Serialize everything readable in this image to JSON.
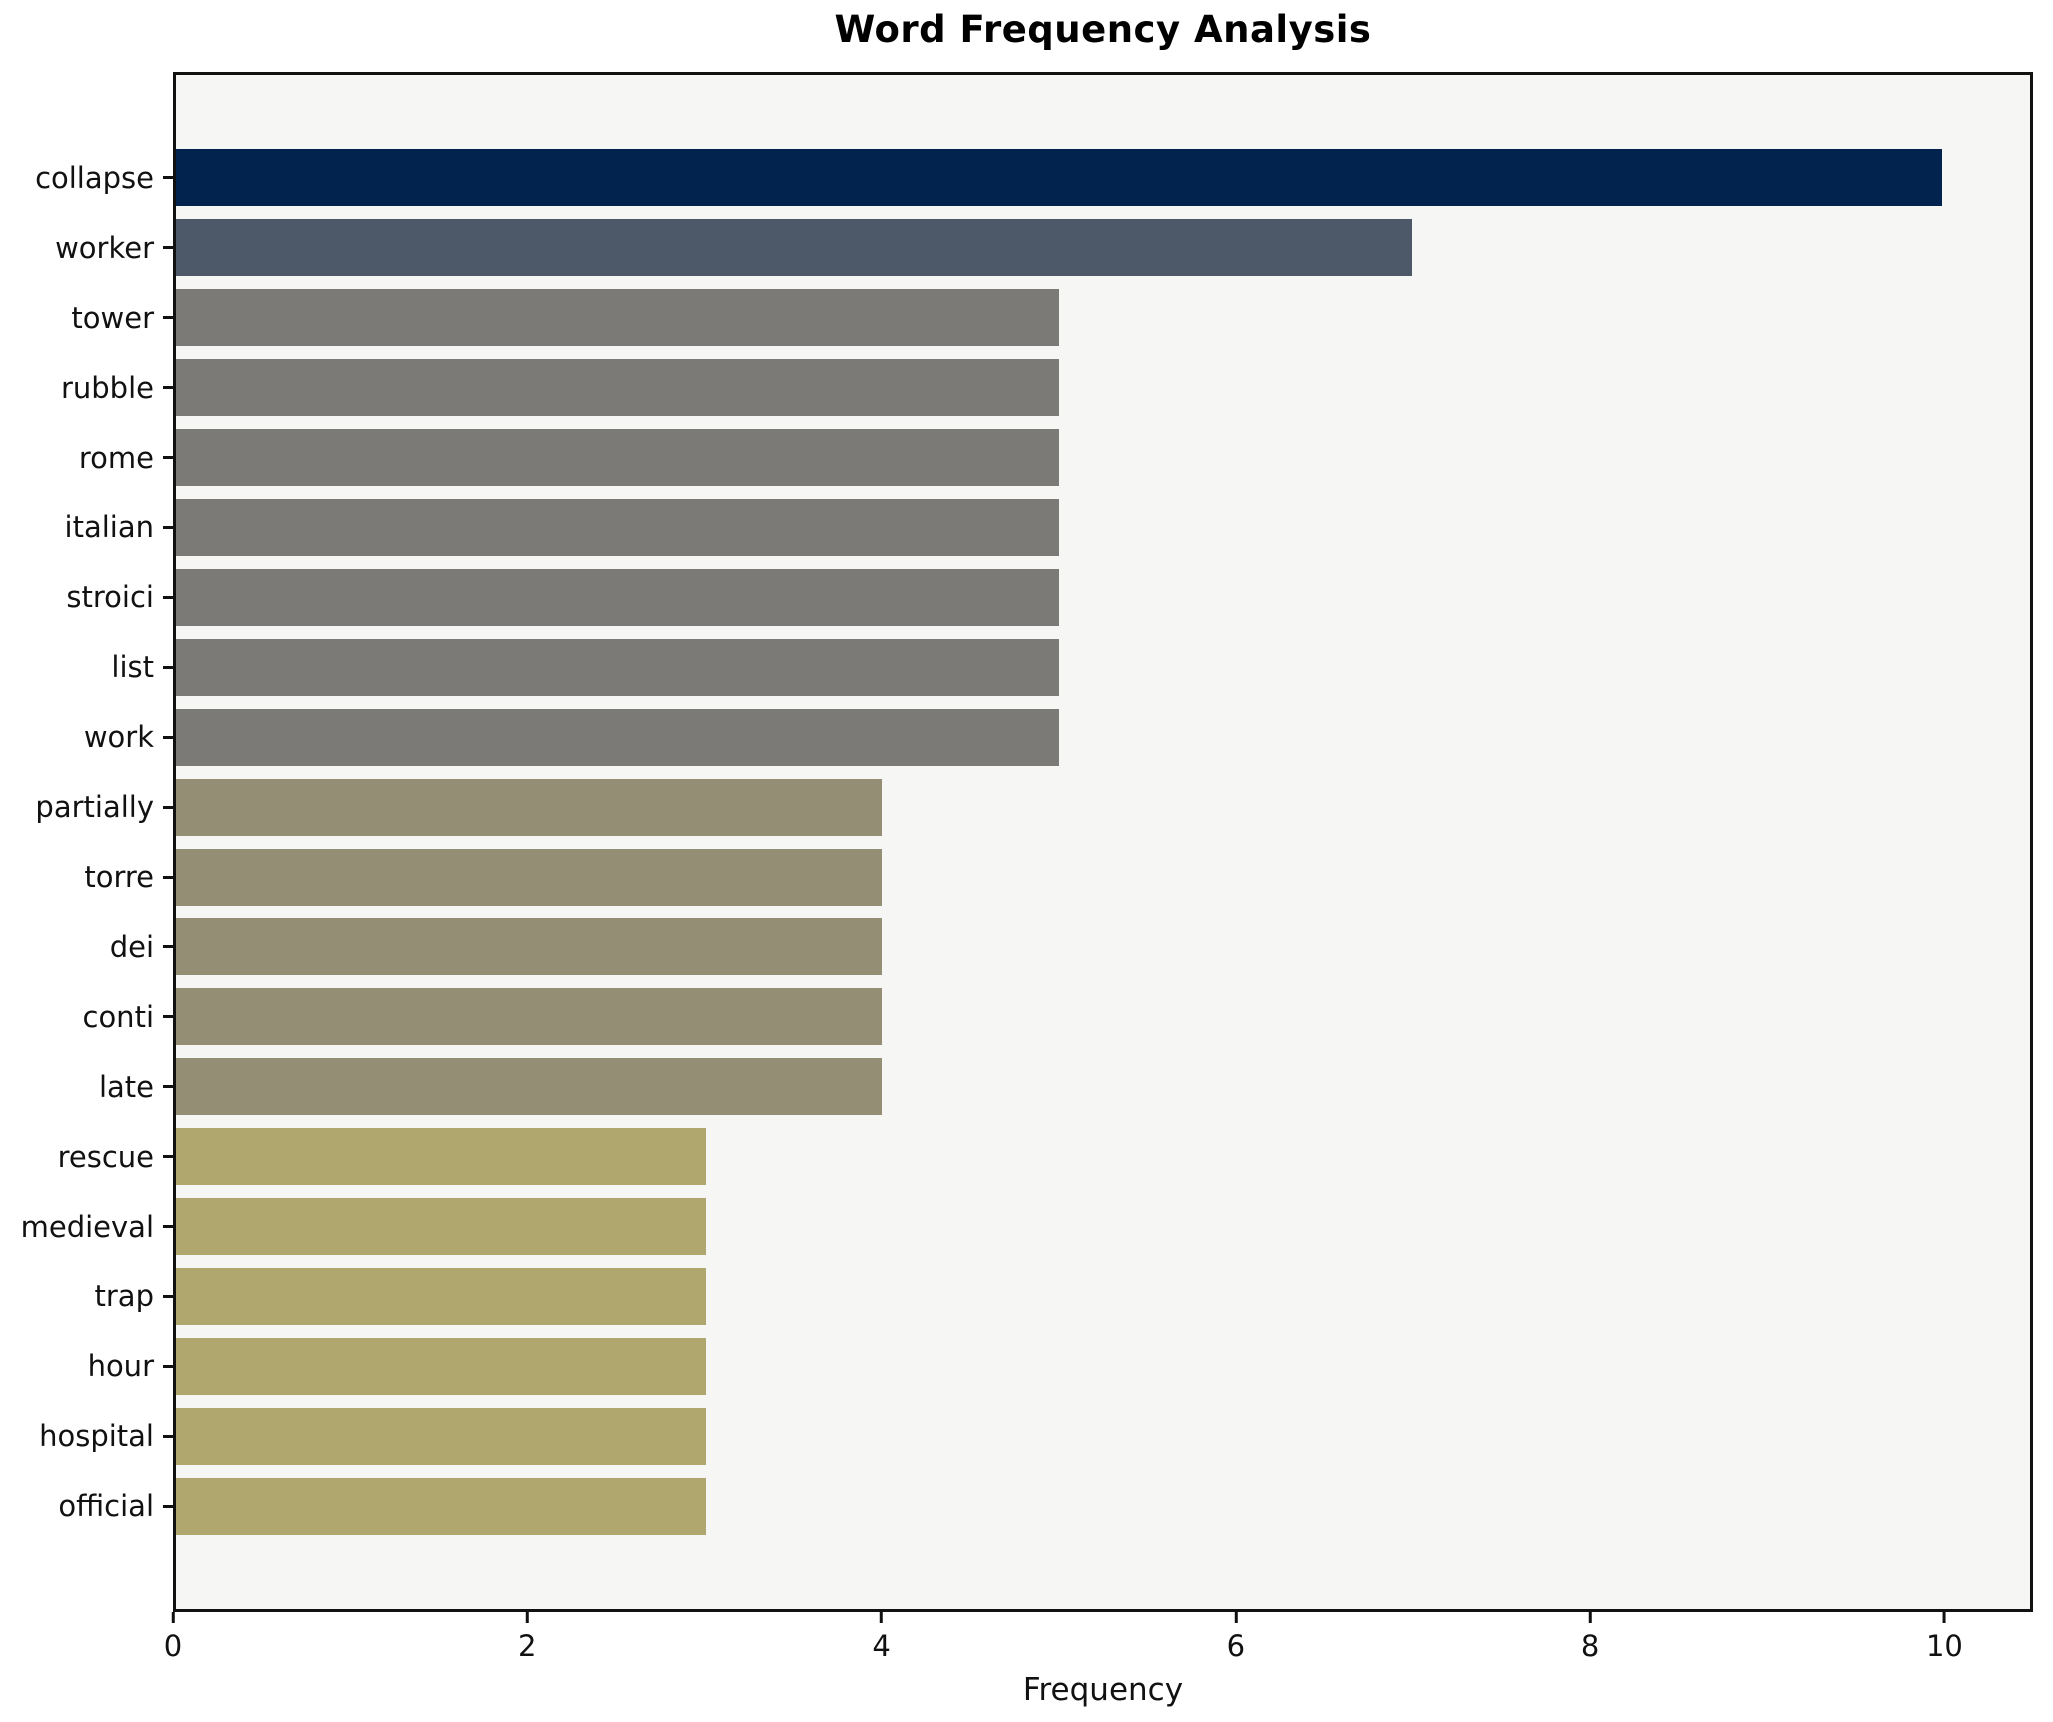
{
  "chart_data": {
    "type": "bar",
    "orientation": "horizontal",
    "title": "Word Frequency Analysis",
    "xlabel": "Frequency",
    "ylabel": "",
    "categories": [
      "collapse",
      "worker",
      "tower",
      "rubble",
      "rome",
      "italian",
      "stroici",
      "list",
      "work",
      "partially",
      "torre",
      "dei",
      "conti",
      "late",
      "rescue",
      "medieval",
      "trap",
      "hour",
      "hospital",
      "official"
    ],
    "values": [
      10,
      7,
      5,
      5,
      5,
      5,
      5,
      5,
      5,
      4,
      4,
      4,
      4,
      4,
      3,
      3,
      3,
      3,
      3,
      3
    ],
    "bar_colors": [
      "#02234e",
      "#4d5869",
      "#7b7a76",
      "#7b7a76",
      "#7b7a76",
      "#7b7a76",
      "#7b7a76",
      "#7b7a76",
      "#7b7a76",
      "#948e74",
      "#948e74",
      "#948e74",
      "#948e74",
      "#948e74",
      "#b0a76e",
      "#b0a76e",
      "#b0a76e",
      "#b0a76e",
      "#b0a76e",
      "#b0a76e"
    ],
    "xlim": [
      0,
      10.5
    ],
    "xticks": [
      0,
      2,
      4,
      6,
      8,
      10
    ],
    "grid": false,
    "legend": null,
    "plot_background": "#f6f6f4",
    "figure_background": "#ffffff",
    "spine_color": "#111111"
  }
}
